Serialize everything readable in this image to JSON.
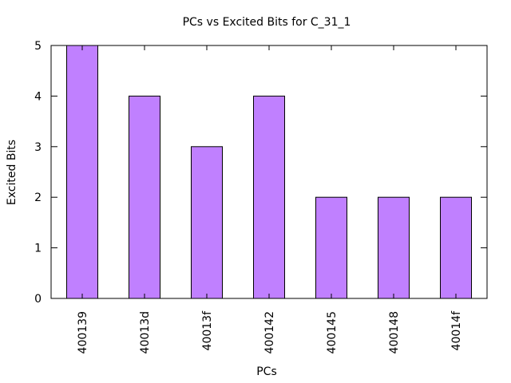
{
  "chart_data": {
    "type": "bar",
    "title": "PCs vs Excited Bits for C_31_1",
    "xlabel": "PCs",
    "ylabel": "Excited Bits",
    "categories": [
      "400139",
      "40013d",
      "40013f",
      "400142",
      "400145",
      "400148",
      "40014f"
    ],
    "values": [
      5,
      4,
      3,
      4,
      2,
      2,
      2
    ],
    "ylim": [
      0,
      5
    ],
    "yticks": [
      "0",
      "1",
      "2",
      "3",
      "4",
      "5"
    ],
    "bar_color": "#c080ff",
    "grid": false,
    "legend": "none"
  }
}
